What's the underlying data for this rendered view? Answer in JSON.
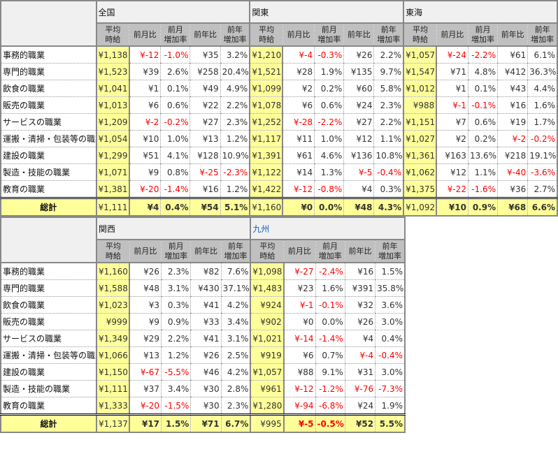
{
  "columns": [
    "平均\n時給",
    "前月比",
    "前月\n増加率",
    "前年比",
    "前年\n増加率"
  ],
  "rows": [
    "事務的職業",
    "専門的職業",
    "飲食の職業",
    "販売の職業",
    "サービスの職業",
    "運搬・清掃・包装等の職業",
    "建設の職業",
    "製造・技能の職業",
    "教育の職業"
  ],
  "total_label": "総計",
  "colors": {
    "avg_bg": "#ffff99",
    "header_bg": "#c0c0c0",
    "negative": "#ff0000",
    "link": "#1060c0"
  },
  "tables": [
    {
      "regions": [
        {
          "name": "全国",
          "link": false,
          "data": [
            [
              "¥1,138",
              "¥-12",
              "-1.0%",
              "¥35",
              "3.2%"
            ],
            [
              "¥1,523",
              "¥39",
              "2.6%",
              "¥258",
              "20.4%"
            ],
            [
              "¥1,041",
              "¥1",
              "0.1%",
              "¥49",
              "4.9%"
            ],
            [
              "¥1,013",
              "¥6",
              "0.6%",
              "¥22",
              "2.2%"
            ],
            [
              "¥1,209",
              "¥-2",
              "-0.2%",
              "¥27",
              "2.3%"
            ],
            [
              "¥1,054",
              "¥10",
              "1.0%",
              "¥13",
              "1.2%"
            ],
            [
              "¥1,299",
              "¥51",
              "4.1%",
              "¥128",
              "10.9%"
            ],
            [
              "¥1,071",
              "¥9",
              "0.8%",
              "¥-25",
              "-2.3%"
            ],
            [
              "¥1,381",
              "¥-20",
              "-1.4%",
              "¥16",
              "1.2%"
            ]
          ],
          "total": [
            "¥1,111",
            "¥4",
            "0.4%",
            "¥54",
            "5.1%"
          ]
        },
        {
          "name": "関東",
          "link": false,
          "data": [
            [
              "¥1,210",
              "¥-4",
              "-0.3%",
              "¥26",
              "2.2%"
            ],
            [
              "¥1,521",
              "¥28",
              "1.9%",
              "¥135",
              "9.7%"
            ],
            [
              "¥1,099",
              "¥2",
              "0.2%",
              "¥60",
              "5.8%"
            ],
            [
              "¥1,078",
              "¥6",
              "0.6%",
              "¥24",
              "2.3%"
            ],
            [
              "¥1,252",
              "¥-28",
              "-2.2%",
              "¥27",
              "2.2%"
            ],
            [
              "¥1,117",
              "¥11",
              "1.0%",
              "¥12",
              "1.1%"
            ],
            [
              "¥1,391",
              "¥61",
              "4.6%",
              "¥136",
              "10.8%"
            ],
            [
              "¥1,122",
              "¥14",
              "1.3%",
              "¥-5",
              "-0.4%"
            ],
            [
              "¥1,422",
              "¥-12",
              "-0.8%",
              "¥4",
              "0.3%"
            ]
          ],
          "total": [
            "¥1,160",
            "¥0",
            "0.0%",
            "¥48",
            "4.3%"
          ]
        },
        {
          "name": "東海",
          "link": false,
          "data": [
            [
              "¥1,057",
              "¥-24",
              "-2.2%",
              "¥61",
              "6.1%"
            ],
            [
              "¥1,547",
              "¥71",
              "4.8%",
              "¥412",
              "36.3%"
            ],
            [
              "¥1,012",
              "¥1",
              "0.1%",
              "¥43",
              "4.4%"
            ],
            [
              "¥988",
              "¥-1",
              "-0.1%",
              "¥16",
              "1.6%"
            ],
            [
              "¥1,151",
              "¥7",
              "0.6%",
              "¥19",
              "1.7%"
            ],
            [
              "¥1,027",
              "¥2",
              "0.2%",
              "¥-2",
              "-0.2%"
            ],
            [
              "¥1,361",
              "¥163",
              "13.6%",
              "¥218",
              "19.1%"
            ],
            [
              "¥1,062",
              "¥12",
              "1.1%",
              "¥-40",
              "-3.6%"
            ],
            [
              "¥1,375",
              "¥-22",
              "-1.6%",
              "¥36",
              "2.7%"
            ]
          ],
          "total": [
            "¥1,092",
            "¥10",
            "0.9%",
            "¥68",
            "6.6%"
          ]
        }
      ]
    },
    {
      "regions": [
        {
          "name": "関西",
          "link": false,
          "data": [
            [
              "¥1,160",
              "¥26",
              "2.3%",
              "¥82",
              "7.6%"
            ],
            [
              "¥1,588",
              "¥48",
              "3.1%",
              "¥430",
              "37.1%"
            ],
            [
              "¥1,023",
              "¥3",
              "0.3%",
              "¥41",
              "4.2%"
            ],
            [
              "¥999",
              "¥9",
              "0.9%",
              "¥33",
              "3.4%"
            ],
            [
              "¥1,349",
              "¥29",
              "2.2%",
              "¥41",
              "3.1%"
            ],
            [
              "¥1,066",
              "¥13",
              "1.2%",
              "¥26",
              "2.5%"
            ],
            [
              "¥1,150",
              "¥-67",
              "-5.5%",
              "¥46",
              "4.2%"
            ],
            [
              "¥1,111",
              "¥37",
              "3.4%",
              "¥30",
              "2.8%"
            ],
            [
              "¥1,333",
              "¥-20",
              "-1.5%",
              "¥30",
              "2.3%"
            ]
          ],
          "total": [
            "¥1,137",
            "¥17",
            "1.5%",
            "¥71",
            "6.7%"
          ]
        },
        {
          "name": "九州",
          "link": true,
          "data": [
            [
              "¥1,098",
              "¥-27",
              "-2.4%",
              "¥16",
              "1.5%"
            ],
            [
              "¥1,483",
              "¥23",
              "1.6%",
              "¥391",
              "35.8%"
            ],
            [
              "¥924",
              "¥-1",
              "-0.1%",
              "¥32",
              "3.6%"
            ],
            [
              "¥902",
              "¥0",
              "0.0%",
              "¥26",
              "3.0%"
            ],
            [
              "¥1,021",
              "¥-14",
              "-1.4%",
              "¥4",
              "0.4%"
            ],
            [
              "¥919",
              "¥6",
              "0.7%",
              "¥-4",
              "-0.4%"
            ],
            [
              "¥1,057",
              "¥88",
              "9.1%",
              "¥31",
              "3.0%"
            ],
            [
              "¥961",
              "¥-12",
              "-1.2%",
              "¥-76",
              "-7.3%"
            ],
            [
              "¥1,280",
              "¥-94",
              "-6.8%",
              "¥24",
              "1.9%"
            ]
          ],
          "total": [
            "¥995",
            "¥-5",
            "-0.5%",
            "¥52",
            "5.5%"
          ]
        }
      ]
    }
  ]
}
